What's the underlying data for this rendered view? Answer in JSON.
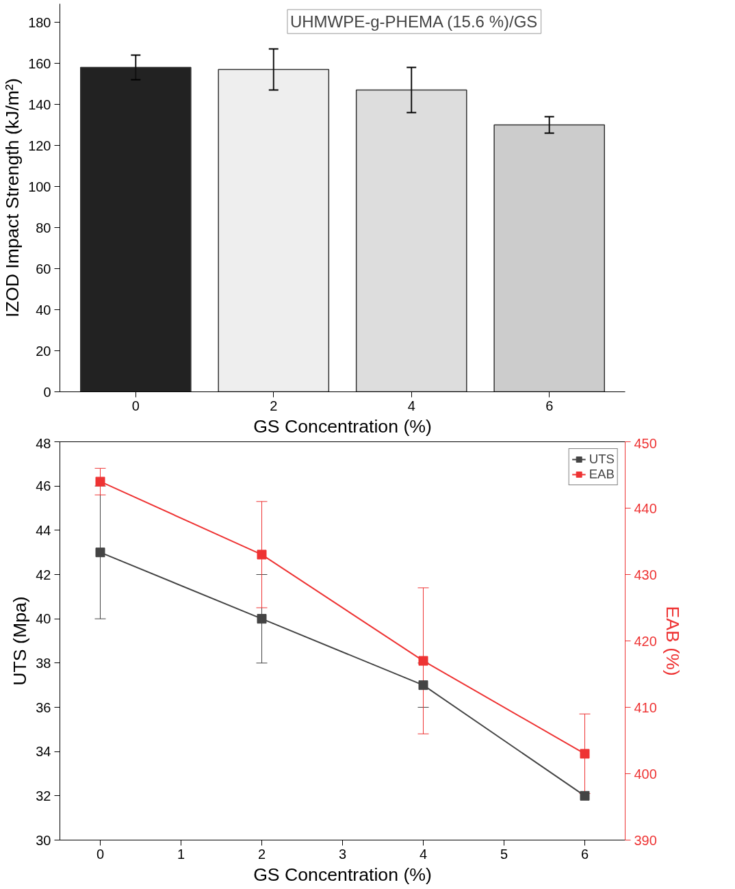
{
  "chart_data": [
    {
      "type": "bar",
      "categories": [
        "0",
        "2",
        "4",
        "6"
      ],
      "xlabel": "GS Concentration (%)",
      "ylabel": "IZOD Impact Strength (kJ/m²)",
      "values": [
        158,
        157,
        147,
        130
      ],
      "errors": [
        6,
        10,
        11,
        4
      ],
      "colors": [
        "#222222",
        "#eeeeee",
        "#dddddd",
        "#cccccc"
      ],
      "ylim": [
        0,
        189
      ],
      "yticks": [
        0,
        20,
        40,
        60,
        80,
        100,
        120,
        140,
        160,
        180
      ],
      "grid": false,
      "annotations": [
        "UHMWPE-g-PHEMA (15.6 %)/GS"
      ]
    },
    {
      "type": "line",
      "x": [
        0,
        2,
        4,
        6
      ],
      "xlabel": "GS Concentration (%)",
      "ylabel": "UTS (Mpa)",
      "y2label": "EAB (%)",
      "xlim": [
        -0.5,
        6.5
      ],
      "xticks": [
        0,
        1,
        2,
        3,
        4,
        5,
        6
      ],
      "ylim": [
        30,
        48
      ],
      "yticks": [
        30,
        32,
        34,
        36,
        38,
        40,
        42,
        44,
        46,
        48
      ],
      "y2lim": [
        390,
        450
      ],
      "y2ticks": [
        390,
        400,
        410,
        420,
        430,
        440,
        450
      ],
      "marker": "square",
      "legend": "top right",
      "grid": false,
      "series": [
        {
          "name": "UTS",
          "color": "#444444",
          "values": [
            43,
            40,
            37,
            32
          ],
          "errors": [
            3,
            2,
            1,
            null
          ]
        },
        {
          "name": "EAB",
          "color": "#ee3333",
          "axis": "y2",
          "values": [
            444,
            433,
            417,
            403
          ],
          "errors": [
            2,
            8,
            11,
            6
          ]
        }
      ]
    }
  ]
}
